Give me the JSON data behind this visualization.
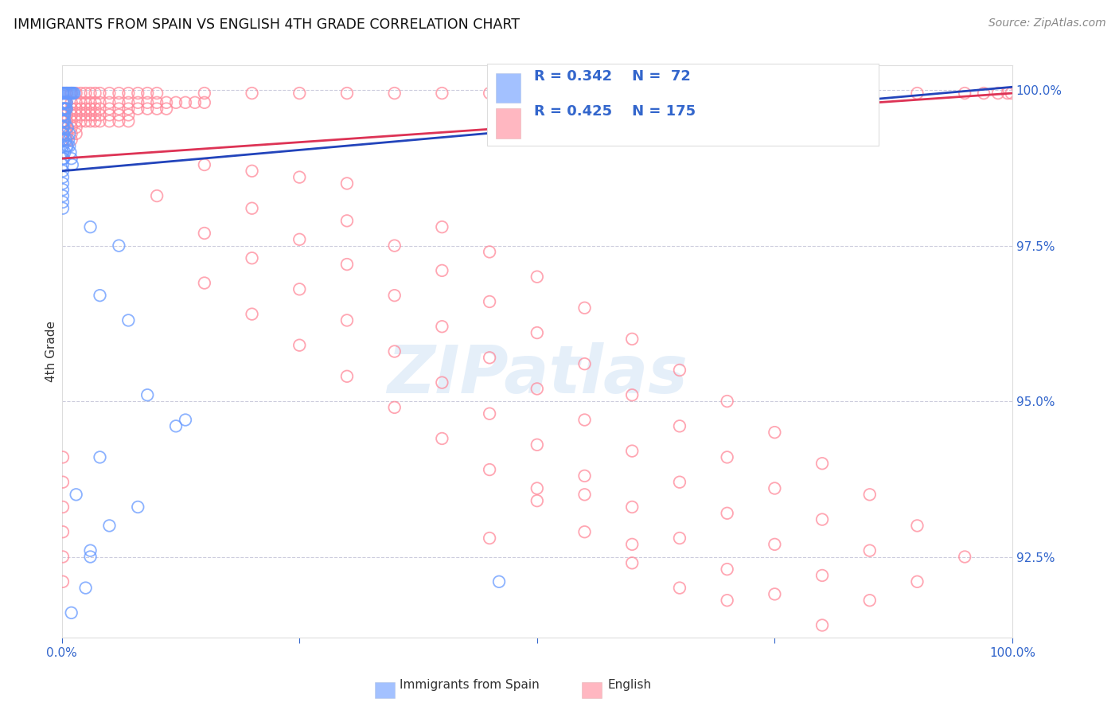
{
  "title": "IMMIGRANTS FROM SPAIN VS ENGLISH 4TH GRADE CORRELATION CHART",
  "source": "Source: ZipAtlas.com",
  "ylabel": "4th Grade",
  "legend_blue_r": "0.342",
  "legend_blue_n": "72",
  "legend_pink_r": "0.425",
  "legend_pink_n": "175",
  "blue_color": "#6699FF",
  "pink_color": "#FF8899",
  "blue_line_color": "#2244BB",
  "pink_line_color": "#DD3355",
  "watermark_text": "ZIPatlas",
  "watermark_color": "#AACCEE",
  "grid_color": "#CCCCDD",
  "ytick_vals": [
    1.0,
    0.975,
    0.95,
    0.925
  ],
  "ytick_labels": [
    "100.0%",
    "97.5%",
    "95.0%",
    "92.5%"
  ],
  "xlim": [
    0.0,
    1.0
  ],
  "ylim": [
    0.912,
    1.004
  ],
  "blue_line_x": [
    0.0,
    1.0
  ],
  "blue_line_y": [
    0.987,
    1.0005
  ],
  "pink_line_x": [
    0.0,
    1.0
  ],
  "pink_line_y": [
    0.989,
    0.9995
  ],
  "blue_scatter": [
    [
      0.001,
      0.9995
    ],
    [
      0.002,
      0.9995
    ],
    [
      0.003,
      0.9995
    ],
    [
      0.004,
      0.9995
    ],
    [
      0.005,
      0.9995
    ],
    [
      0.006,
      0.9995
    ],
    [
      0.007,
      0.9995
    ],
    [
      0.008,
      0.9995
    ],
    [
      0.009,
      0.9995
    ],
    [
      0.01,
      0.9995
    ],
    [
      0.011,
      0.9995
    ],
    [
      0.012,
      0.9995
    ],
    [
      0.013,
      0.9995
    ],
    [
      0.001,
      0.998
    ],
    [
      0.002,
      0.998
    ],
    [
      0.003,
      0.998
    ],
    [
      0.004,
      0.998
    ],
    [
      0.005,
      0.998
    ],
    [
      0.001,
      0.997
    ],
    [
      0.002,
      0.997
    ],
    [
      0.003,
      0.997
    ],
    [
      0.004,
      0.997
    ],
    [
      0.005,
      0.997
    ],
    [
      0.001,
      0.996
    ],
    [
      0.002,
      0.996
    ],
    [
      0.003,
      0.996
    ],
    [
      0.001,
      0.995
    ],
    [
      0.002,
      0.995
    ],
    [
      0.003,
      0.995
    ],
    [
      0.001,
      0.994
    ],
    [
      0.002,
      0.994
    ],
    [
      0.001,
      0.993
    ],
    [
      0.002,
      0.993
    ],
    [
      0.001,
      0.992
    ],
    [
      0.002,
      0.992
    ],
    [
      0.001,
      0.991
    ],
    [
      0.001,
      0.99
    ],
    [
      0.001,
      0.989
    ],
    [
      0.001,
      0.988
    ],
    [
      0.001,
      0.987
    ],
    [
      0.001,
      0.986
    ],
    [
      0.001,
      0.985
    ],
    [
      0.001,
      0.984
    ],
    [
      0.001,
      0.983
    ],
    [
      0.001,
      0.982
    ],
    [
      0.001,
      0.981
    ],
    [
      0.03,
      0.978
    ],
    [
      0.06,
      0.975
    ],
    [
      0.04,
      0.967
    ],
    [
      0.07,
      0.963
    ],
    [
      0.09,
      0.951
    ],
    [
      0.13,
      0.947
    ],
    [
      0.04,
      0.941
    ],
    [
      0.08,
      0.933
    ],
    [
      0.03,
      0.926
    ],
    [
      0.46,
      0.921
    ],
    [
      0.01,
      0.916
    ],
    [
      0.03,
      0.925
    ],
    [
      0.025,
      0.92
    ],
    [
      0.12,
      0.946
    ],
    [
      0.05,
      0.93
    ],
    [
      0.015,
      0.935
    ],
    [
      0.008,
      0.993
    ],
    [
      0.006,
      0.994
    ],
    [
      0.004,
      0.992
    ],
    [
      0.005,
      0.991
    ],
    [
      0.003,
      0.99
    ],
    [
      0.002,
      0.989
    ],
    [
      0.006,
      0.991
    ],
    [
      0.007,
      0.992
    ],
    [
      0.008,
      0.991
    ],
    [
      0.009,
      0.99
    ],
    [
      0.01,
      0.989
    ],
    [
      0.011,
      0.988
    ]
  ],
  "pink_scatter": [
    [
      0.001,
      0.9995
    ],
    [
      0.005,
      0.9995
    ],
    [
      0.01,
      0.9995
    ],
    [
      0.015,
      0.9995
    ],
    [
      0.02,
      0.9995
    ],
    [
      0.025,
      0.9995
    ],
    [
      0.03,
      0.9995
    ],
    [
      0.035,
      0.9995
    ],
    [
      0.04,
      0.9995
    ],
    [
      0.05,
      0.9995
    ],
    [
      0.06,
      0.9995
    ],
    [
      0.07,
      0.9995
    ],
    [
      0.08,
      0.9995
    ],
    [
      0.09,
      0.9995
    ],
    [
      0.1,
      0.9995
    ],
    [
      0.15,
      0.9995
    ],
    [
      0.2,
      0.9995
    ],
    [
      0.25,
      0.9995
    ],
    [
      0.3,
      0.9995
    ],
    [
      0.35,
      0.9995
    ],
    [
      0.4,
      0.9995
    ],
    [
      0.45,
      0.9995
    ],
    [
      0.5,
      0.9995
    ],
    [
      0.55,
      0.9995
    ],
    [
      0.6,
      0.9995
    ],
    [
      0.65,
      0.9995
    ],
    [
      0.7,
      0.9995
    ],
    [
      0.75,
      0.9995
    ],
    [
      0.8,
      0.9995
    ],
    [
      0.85,
      0.9995
    ],
    [
      0.9,
      0.9995
    ],
    [
      0.95,
      0.9995
    ],
    [
      0.97,
      0.9995
    ],
    [
      0.985,
      0.9995
    ],
    [
      0.995,
      0.9995
    ],
    [
      0.999,
      0.9995
    ],
    [
      0.001,
      0.998
    ],
    [
      0.005,
      0.998
    ],
    [
      0.01,
      0.998
    ],
    [
      0.015,
      0.998
    ],
    [
      0.02,
      0.998
    ],
    [
      0.025,
      0.998
    ],
    [
      0.03,
      0.998
    ],
    [
      0.035,
      0.998
    ],
    [
      0.04,
      0.998
    ],
    [
      0.05,
      0.998
    ],
    [
      0.06,
      0.998
    ],
    [
      0.07,
      0.998
    ],
    [
      0.08,
      0.998
    ],
    [
      0.09,
      0.998
    ],
    [
      0.1,
      0.998
    ],
    [
      0.11,
      0.998
    ],
    [
      0.12,
      0.998
    ],
    [
      0.13,
      0.998
    ],
    [
      0.14,
      0.998
    ],
    [
      0.15,
      0.998
    ],
    [
      0.001,
      0.997
    ],
    [
      0.005,
      0.997
    ],
    [
      0.01,
      0.997
    ],
    [
      0.015,
      0.997
    ],
    [
      0.02,
      0.997
    ],
    [
      0.025,
      0.997
    ],
    [
      0.03,
      0.997
    ],
    [
      0.035,
      0.997
    ],
    [
      0.04,
      0.997
    ],
    [
      0.05,
      0.997
    ],
    [
      0.06,
      0.997
    ],
    [
      0.07,
      0.997
    ],
    [
      0.08,
      0.997
    ],
    [
      0.09,
      0.997
    ],
    [
      0.1,
      0.997
    ],
    [
      0.11,
      0.997
    ],
    [
      0.001,
      0.996
    ],
    [
      0.005,
      0.996
    ],
    [
      0.01,
      0.996
    ],
    [
      0.015,
      0.996
    ],
    [
      0.02,
      0.996
    ],
    [
      0.025,
      0.996
    ],
    [
      0.03,
      0.996
    ],
    [
      0.035,
      0.996
    ],
    [
      0.04,
      0.996
    ],
    [
      0.05,
      0.996
    ],
    [
      0.06,
      0.996
    ],
    [
      0.07,
      0.996
    ],
    [
      0.001,
      0.995
    ],
    [
      0.005,
      0.995
    ],
    [
      0.01,
      0.995
    ],
    [
      0.015,
      0.995
    ],
    [
      0.02,
      0.995
    ],
    [
      0.025,
      0.995
    ],
    [
      0.03,
      0.995
    ],
    [
      0.035,
      0.995
    ],
    [
      0.04,
      0.995
    ],
    [
      0.05,
      0.995
    ],
    [
      0.06,
      0.995
    ],
    [
      0.07,
      0.995
    ],
    [
      0.001,
      0.994
    ],
    [
      0.005,
      0.994
    ],
    [
      0.01,
      0.994
    ],
    [
      0.015,
      0.994
    ],
    [
      0.001,
      0.993
    ],
    [
      0.005,
      0.993
    ],
    [
      0.01,
      0.993
    ],
    [
      0.015,
      0.993
    ],
    [
      0.001,
      0.992
    ],
    [
      0.005,
      0.992
    ],
    [
      0.01,
      0.992
    ],
    [
      0.001,
      0.941
    ],
    [
      0.001,
      0.937
    ],
    [
      0.001,
      0.933
    ],
    [
      0.001,
      0.929
    ],
    [
      0.001,
      0.925
    ],
    [
      0.001,
      0.921
    ],
    [
      0.15,
      0.988
    ],
    [
      0.2,
      0.987
    ],
    [
      0.25,
      0.986
    ],
    [
      0.3,
      0.985
    ],
    [
      0.1,
      0.983
    ],
    [
      0.2,
      0.981
    ],
    [
      0.3,
      0.979
    ],
    [
      0.4,
      0.978
    ],
    [
      0.15,
      0.977
    ],
    [
      0.25,
      0.976
    ],
    [
      0.35,
      0.975
    ],
    [
      0.45,
      0.974
    ],
    [
      0.2,
      0.973
    ],
    [
      0.3,
      0.972
    ],
    [
      0.4,
      0.971
    ],
    [
      0.5,
      0.97
    ],
    [
      0.15,
      0.969
    ],
    [
      0.25,
      0.968
    ],
    [
      0.35,
      0.967
    ],
    [
      0.45,
      0.966
    ],
    [
      0.55,
      0.965
    ],
    [
      0.2,
      0.964
    ],
    [
      0.3,
      0.963
    ],
    [
      0.4,
      0.962
    ],
    [
      0.5,
      0.961
    ],
    [
      0.6,
      0.96
    ],
    [
      0.25,
      0.959
    ],
    [
      0.35,
      0.958
    ],
    [
      0.45,
      0.957
    ],
    [
      0.55,
      0.956
    ],
    [
      0.65,
      0.955
    ],
    [
      0.3,
      0.954
    ],
    [
      0.4,
      0.953
    ],
    [
      0.5,
      0.952
    ],
    [
      0.6,
      0.951
    ],
    [
      0.7,
      0.95
    ],
    [
      0.35,
      0.949
    ],
    [
      0.45,
      0.948
    ],
    [
      0.55,
      0.947
    ],
    [
      0.65,
      0.946
    ],
    [
      0.75,
      0.945
    ],
    [
      0.4,
      0.944
    ],
    [
      0.5,
      0.943
    ],
    [
      0.6,
      0.942
    ],
    [
      0.7,
      0.941
    ],
    [
      0.8,
      0.94
    ],
    [
      0.45,
      0.939
    ],
    [
      0.55,
      0.938
    ],
    [
      0.65,
      0.937
    ],
    [
      0.75,
      0.936
    ],
    [
      0.85,
      0.935
    ],
    [
      0.5,
      0.934
    ],
    [
      0.6,
      0.933
    ],
    [
      0.7,
      0.932
    ],
    [
      0.8,
      0.931
    ],
    [
      0.9,
      0.93
    ],
    [
      0.55,
      0.929
    ],
    [
      0.65,
      0.928
    ],
    [
      0.75,
      0.927
    ],
    [
      0.85,
      0.926
    ],
    [
      0.95,
      0.925
    ],
    [
      0.6,
      0.924
    ],
    [
      0.7,
      0.923
    ],
    [
      0.8,
      0.922
    ],
    [
      0.9,
      0.921
    ],
    [
      0.65,
      0.92
    ],
    [
      0.75,
      0.919
    ],
    [
      0.85,
      0.918
    ],
    [
      0.5,
      0.936
    ],
    [
      0.6,
      0.927
    ],
    [
      0.7,
      0.918
    ],
    [
      0.45,
      0.928
    ],
    [
      0.55,
      0.935
    ],
    [
      0.8,
      0.914
    ]
  ]
}
